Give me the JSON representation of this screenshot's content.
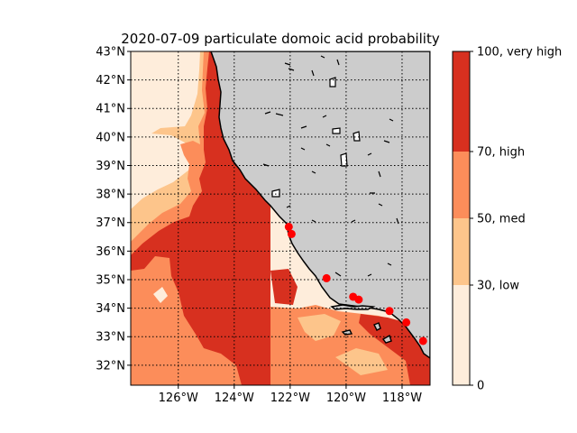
{
  "title": "2020-07-09 particulate domoic acid probability",
  "map": {
    "lon_range": [
      -127.7,
      -117.0
    ],
    "lat_range": [
      31.3,
      43.0
    ],
    "lat_ticks": [
      {
        "value": 32,
        "label": "32°N"
      },
      {
        "value": 33,
        "label": "33°N"
      },
      {
        "value": 34,
        "label": "34°N"
      },
      {
        "value": 35,
        "label": "35°N"
      },
      {
        "value": 36,
        "label": "36°N"
      },
      {
        "value": 37,
        "label": "37°N"
      },
      {
        "value": 38,
        "label": "38°N"
      },
      {
        "value": 39,
        "label": "39°N"
      },
      {
        "value": 40,
        "label": "40°N"
      },
      {
        "value": 41,
        "label": "41°N"
      },
      {
        "value": 42,
        "label": "42°N"
      },
      {
        "value": 43,
        "label": "43°N"
      }
    ],
    "lon_ticks": [
      {
        "value": -126,
        "label": "126°W"
      },
      {
        "value": -124,
        "label": "124°W"
      },
      {
        "value": -122,
        "label": "122°W"
      },
      {
        "value": -120,
        "label": "120°W"
      },
      {
        "value": -118,
        "label": "118°W"
      }
    ],
    "grid": "dotted",
    "land_color": "#cccccc",
    "observation_color": "#ff0000",
    "observations": [
      {
        "lon": -122.05,
        "lat": 36.85
      },
      {
        "lon": -121.95,
        "lat": 36.6
      },
      {
        "lon": -120.7,
        "lat": 35.05
      },
      {
        "lon": -119.75,
        "lat": 34.4
      },
      {
        "lon": -119.55,
        "lat": 34.3
      },
      {
        "lon": -118.45,
        "lat": 33.9
      },
      {
        "lon": -117.85,
        "lat": 33.5
      },
      {
        "lon": -117.25,
        "lat": 32.85
      }
    ]
  },
  "colorbar": {
    "range": [
      0,
      100
    ],
    "bins": [
      {
        "from": 0,
        "to": 30,
        "color": "#feeddb"
      },
      {
        "from": 30,
        "to": 50,
        "color": "#fdc58b"
      },
      {
        "from": 50,
        "to": 70,
        "color": "#fc8d5a"
      },
      {
        "from": 70,
        "to": 100,
        "color": "#d7301f"
      }
    ],
    "ticks": [
      {
        "value": 0,
        "label": "0"
      },
      {
        "value": 30,
        "label": "30, low"
      },
      {
        "value": 50,
        "label": "50, med"
      },
      {
        "value": 70,
        "label": "70, high"
      },
      {
        "value": 100,
        "label": "100, very high"
      }
    ]
  }
}
